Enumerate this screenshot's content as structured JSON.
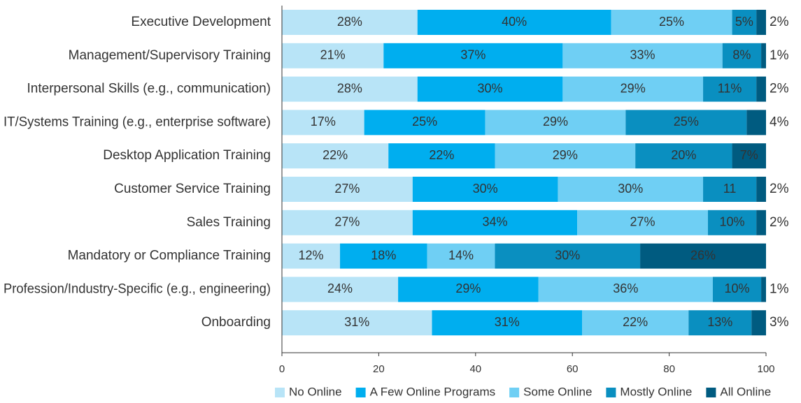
{
  "chart_data": {
    "type": "stacked-bar-horizontal",
    "categories": [
      "Executive Development",
      "Management/Supervisory Training",
      "Interpersonal Skills (e.g., communication)",
      "IT/Systems Training (e.g., enterprise software)",
      "Desktop Application Training",
      "Customer Service Training",
      "Sales Training",
      "Mandatory or Compliance Training",
      "Profession/Industry-Specific (e.g., engineering)",
      "Onboarding"
    ],
    "series": [
      {
        "name": "No Online",
        "color": "#b8e4f7",
        "values": [
          28,
          21,
          28,
          17,
          22,
          27,
          27,
          12,
          24,
          31
        ],
        "value_labels": [
          "28%",
          "21%",
          "28%",
          "17%",
          "22%",
          "27%",
          "27%",
          "12%",
          "24%",
          "31%"
        ]
      },
      {
        "name": "A Few Online Programs",
        "color": "#00aeef",
        "values": [
          40,
          37,
          30,
          25,
          22,
          30,
          34,
          18,
          29,
          31
        ],
        "value_labels": [
          "40%",
          "37%",
          "30%",
          "25%",
          "22%",
          "30%",
          "34%",
          "18%",
          "29%",
          "31%"
        ]
      },
      {
        "name": "Some Online",
        "color": "#6fcff4",
        "values": [
          25,
          33,
          29,
          29,
          29,
          30,
          27,
          14,
          36,
          22
        ],
        "value_labels": [
          "25%",
          "33%",
          "29%",
          "29%",
          "29%",
          "30%",
          "27%",
          "14%",
          "36%",
          "22%"
        ]
      },
      {
        "name": "Mostly Online",
        "color": "#0a8fc0",
        "values": [
          5,
          8,
          11,
          25,
          20,
          11,
          10,
          30,
          10,
          13
        ],
        "value_labels": [
          "5%",
          "8%",
          "11%",
          "25%",
          "20%",
          "11",
          "10%",
          "30%",
          "10%",
          "13%"
        ]
      },
      {
        "name": "All Online",
        "color": "#005b80",
        "values": [
          2,
          1,
          2,
          4,
          7,
          2,
          2,
          26,
          1,
          3
        ],
        "value_labels": [
          "2%",
          "1%",
          "2%",
          "4%",
          "7%",
          "2%",
          "2%",
          "26%",
          "1%",
          "3%"
        ]
      }
    ],
    "xlim": [
      0,
      100
    ],
    "xticks": [
      0,
      20,
      40,
      60,
      80,
      100
    ],
    "grid": false,
    "legend": "bottom"
  }
}
